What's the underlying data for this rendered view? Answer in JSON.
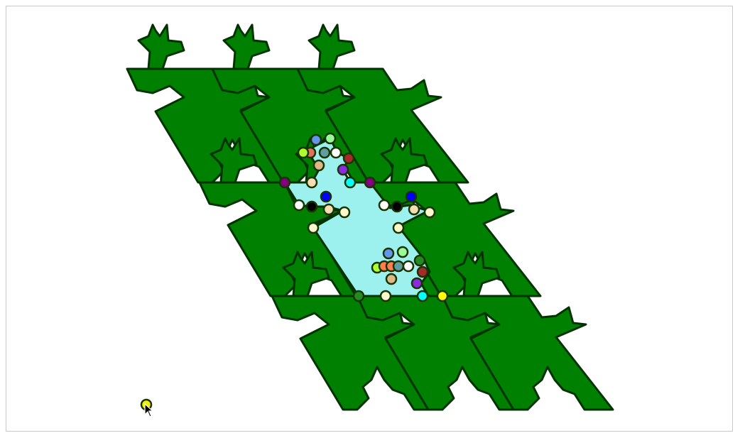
{
  "canvas": {
    "background": "#ffffff",
    "border_color": "#c8c8c8"
  },
  "tiling": {
    "tile_fill": "#008000",
    "tile_stroke": "#003300",
    "highlight_fill": "#9cf0ee",
    "handle_stroke": "#1a3300"
  },
  "handles": {
    "colors": [
      "#800080",
      "#f5deb3",
      "#ffffff",
      "#000000",
      "#0000ff",
      "#fffacd",
      "#e2725b",
      "#adff2f",
      "#6495ed",
      "#98fb98",
      "#5f9ea0",
      "#a52a2a",
      "#8a2be2",
      "#00ffff",
      "#deb887",
      "#228b22",
      "#ffff00",
      "#ff7f50"
    ]
  },
  "cursor_handle": {
    "color": "#f0f000"
  },
  "icons": {
    "cursor": "arrow-pointer-icon"
  }
}
